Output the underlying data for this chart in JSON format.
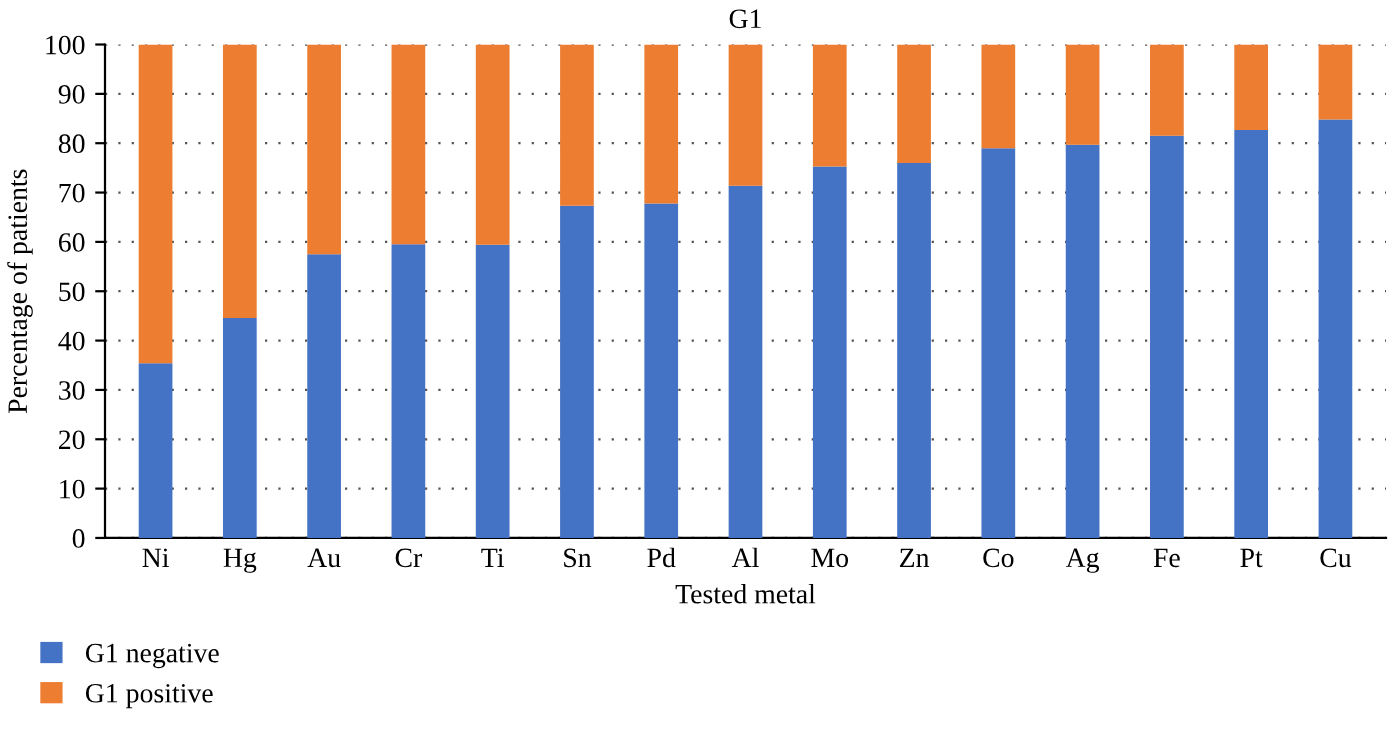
{
  "chart_data": {
    "type": "bar",
    "title": "G1",
    "xlabel": "Tested metal",
    "ylabel": "Percentage of patients",
    "categories": [
      "Ni",
      "Hg",
      "Au",
      "Cr",
      "Ti",
      "Sn",
      "Pd",
      "Al",
      "Mo",
      "Zn",
      "Co",
      "Ag",
      "Fe",
      "Pt",
      "Cu"
    ],
    "stacked": true,
    "series": [
      {
        "name": "G1 negative",
        "color": "#4472c4",
        "values": [
          35.4,
          44.6,
          57.5,
          59.5,
          59.4,
          67.3,
          67.8,
          71.4,
          75.3,
          76.0,
          79.0,
          79.7,
          81.5,
          82.7,
          84.8
        ]
      },
      {
        "name": "G1 positive",
        "color": "#ed7d31",
        "values": [
          64.6,
          55.4,
          42.5,
          40.5,
          40.6,
          32.7,
          32.2,
          28.6,
          24.7,
          24.0,
          21.0,
          20.3,
          18.5,
          17.3,
          15.2
        ]
      }
    ],
    "ylim": [
      0,
      100
    ],
    "yticks": [
      0,
      10,
      20,
      30,
      40,
      50,
      60,
      70,
      80,
      90,
      100
    ],
    "grid": "y",
    "legend": "bottom left"
  }
}
